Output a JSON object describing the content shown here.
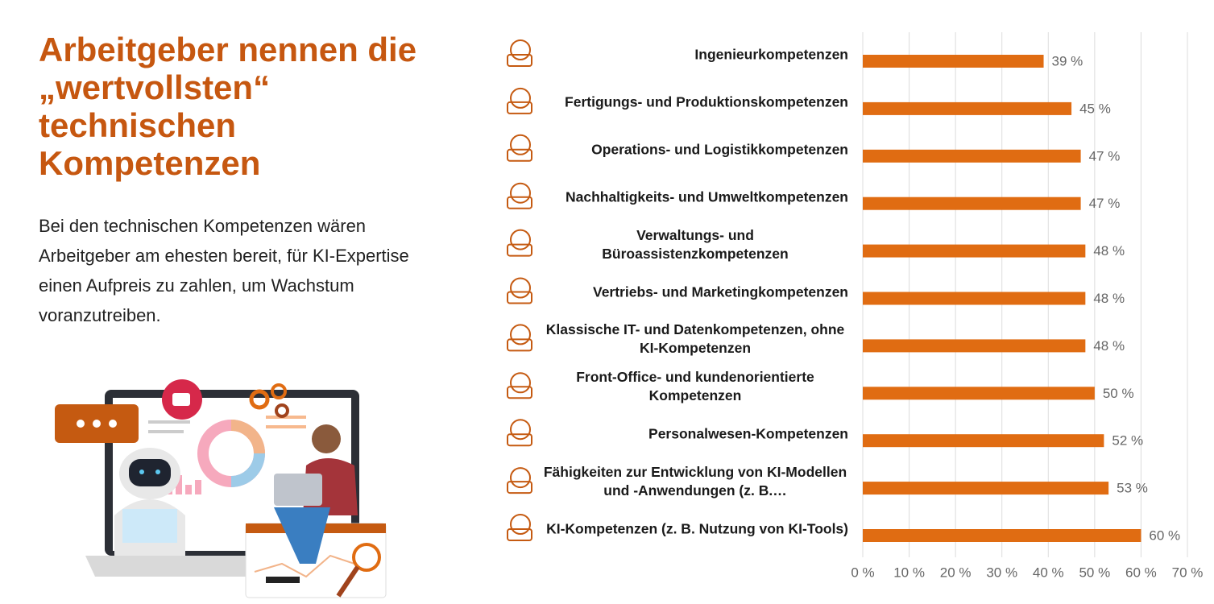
{
  "heading": "Arbeitgeber nennen die „wertvollsten“ technischen Kompetenzen",
  "body": "Bei den technischen Kompetenzen wären Arbeitgeber am ehesten bereit, für KI-Expertise einen Aufpreis zu zahlen, um Wachstum voranzutreiben.",
  "chart_data": {
    "type": "bar",
    "orientation": "horizontal",
    "categories": [
      "Ingenieurkompetenzen",
      "Fertigungs- und Produktionskompetenzen",
      "Operations- und Logistikkompetenzen",
      "Nachhaltigkeits- und Umweltkompetenzen",
      "Verwaltungs- und Büroassistenzkompetenzen",
      "Vertriebs- und Marketingkompetenzen",
      "Klassische IT- und Datenkompetenzen, ohne KI-Kompetenzen",
      "Front-Office- und kundenorientierte Kompetenzen",
      "Personalwesen-Kompetenzen",
      "Fähigkeiten zur Entwicklung von KI-Modellen und -Anwendungen (z. B.…",
      "KI-Kompetenzen (z. B. Nutzung von KI-Tools)"
    ],
    "values": [
      39,
      45,
      47,
      47,
      48,
      48,
      48,
      50,
      52,
      53,
      60
    ],
    "value_labels": [
      "39 %",
      "45 %",
      "47 %",
      "47 %",
      "48 %",
      "48 %",
      "48 %",
      "50 %",
      "52 %",
      "53 %",
      "60 %"
    ],
    "color": "#e06c12",
    "xlim": [
      0,
      70
    ],
    "xticks": [
      {
        "value": 0,
        "label": "0 %"
      },
      {
        "value": 10,
        "label": "10 %"
      },
      {
        "value": 20,
        "label": "20 %"
      },
      {
        "value": 30,
        "label": "30 %"
      },
      {
        "value": 40,
        "label": "40 %"
      },
      {
        "value": 50,
        "label": "50 %"
      },
      {
        "value": 60,
        "label": "60 %"
      },
      {
        "value": 70,
        "label": "70 %"
      }
    ],
    "grid": true
  }
}
